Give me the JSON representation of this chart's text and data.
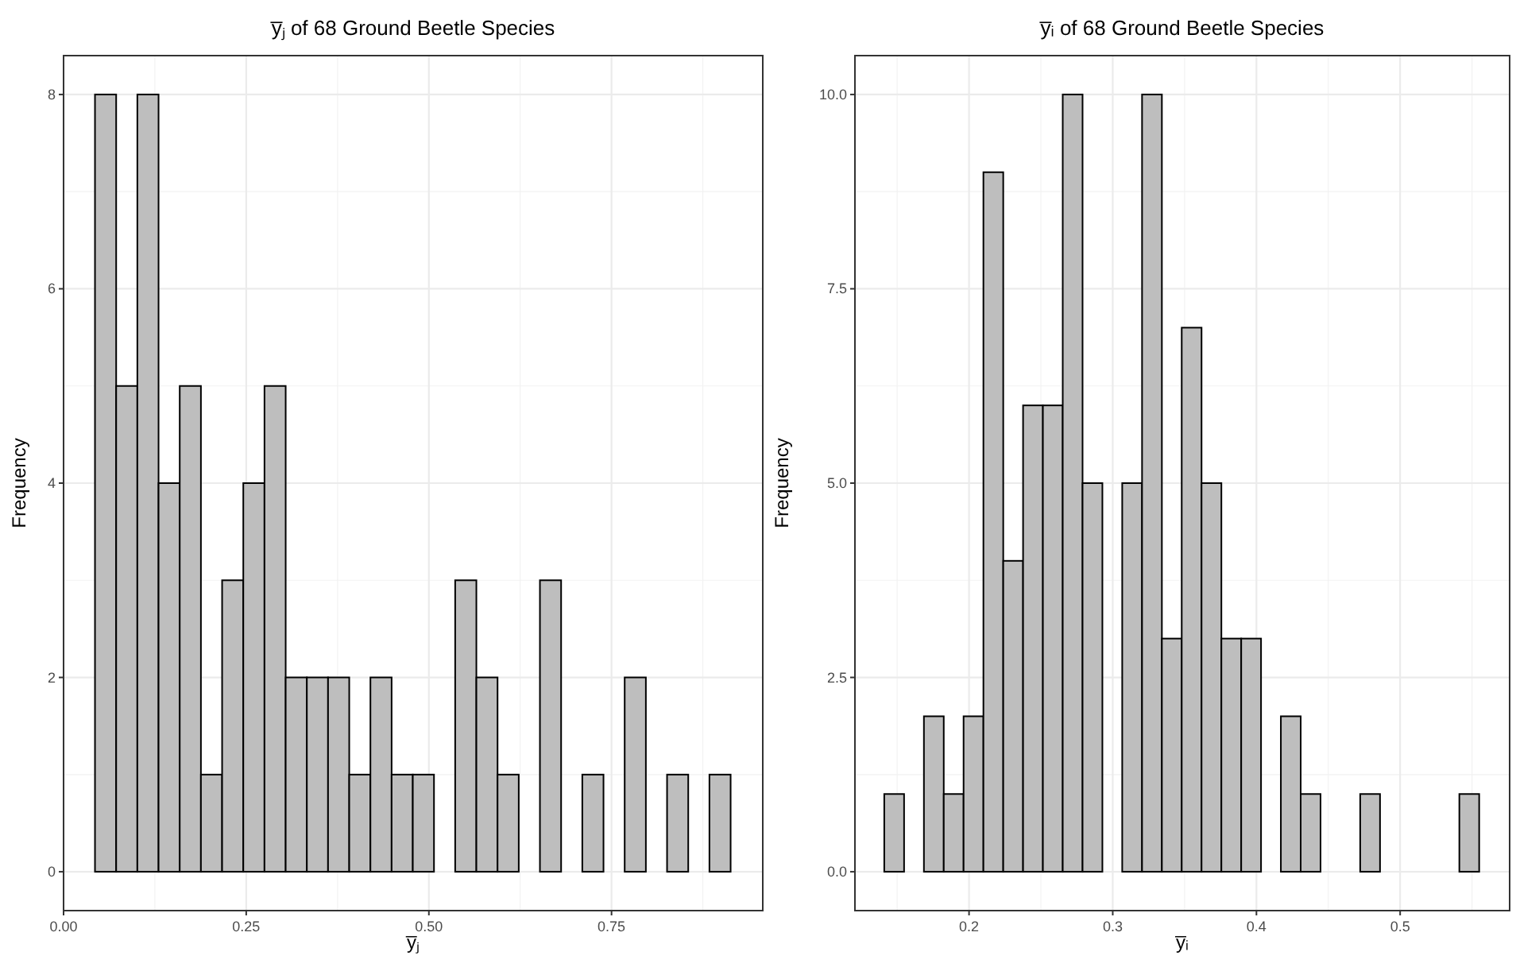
{
  "chart_data": [
    {
      "type": "histogram",
      "title": "y̅ⱼ of 68 Ground Beetle Species",
      "xlabel": "y̅ⱼ",
      "ylabel": "Frequency",
      "color": "#bebebe",
      "bins": [
        0.043,
        0.072,
        0.101,
        0.13,
        0.159,
        0.188,
        0.217,
        0.246,
        0.275,
        0.304,
        0.333,
        0.362,
        0.391,
        0.42,
        0.449,
        0.478,
        0.507,
        0.536,
        0.565,
        0.594,
        0.623,
        0.652,
        0.681,
        0.71,
        0.739,
        0.768,
        0.797,
        0.826,
        0.855,
        0.884,
        0.913
      ],
      "values": [
        8,
        5,
        8,
        4,
        5,
        1,
        3,
        4,
        5,
        2,
        2,
        2,
        1,
        2,
        1,
        1,
        0,
        3,
        2,
        1,
        0,
        3,
        0,
        1,
        0,
        2,
        0,
        1,
        0,
        1
      ],
      "xlim": [
        0,
        0.957
      ],
      "xticks": [
        {
          "value": 0,
          "label": "0.00"
        },
        {
          "value": 0.25,
          "label": "0.25"
        },
        {
          "value": 0.5,
          "label": "0.50"
        },
        {
          "value": 0.75,
          "label": "0.75"
        }
      ],
      "ylim": [
        -0.4,
        8.4
      ],
      "yticks": [
        0,
        2,
        4,
        6,
        8
      ],
      "grid": true
    },
    {
      "type": "histogram",
      "title": "y̅ᵢ of 68 Ground Beetle Species",
      "xlabel": "y̅ᵢ",
      "ylabel": "Frequency",
      "color": "#bebebe",
      "bins": [
        0.141,
        0.1548,
        0.1686,
        0.1824,
        0.1962,
        0.21,
        0.2238,
        0.2376,
        0.2514,
        0.2652,
        0.279,
        0.2928,
        0.3066,
        0.3204,
        0.3342,
        0.348,
        0.3618,
        0.3756,
        0.3894,
        0.4032,
        0.417,
        0.4308,
        0.4446,
        0.4584,
        0.4722,
        0.486,
        0.4998,
        0.5136,
        0.5274,
        0.5412,
        0.555
      ],
      "values": [
        1,
        0,
        2,
        1,
        2,
        9,
        4,
        6,
        6,
        10,
        5,
        0,
        5,
        10,
        3,
        7,
        5,
        3,
        3,
        0,
        2,
        1,
        0,
        0,
        1,
        0,
        0,
        0,
        0,
        1
      ],
      "xlim": [
        0.1206,
        0.5762
      ],
      "xticks": [
        0.2,
        0.3,
        0.4,
        0.5
      ],
      "ylim": [
        -0.5,
        10.5
      ],
      "yticks": [
        {
          "value": 0,
          "label": "0.0"
        },
        {
          "value": 2.5,
          "label": "2.5"
        },
        {
          "value": 5,
          "label": "5.0"
        },
        {
          "value": 7.5,
          "label": "7.5"
        },
        {
          "value": 10,
          "label": "10.0"
        }
      ],
      "grid": true
    }
  ]
}
